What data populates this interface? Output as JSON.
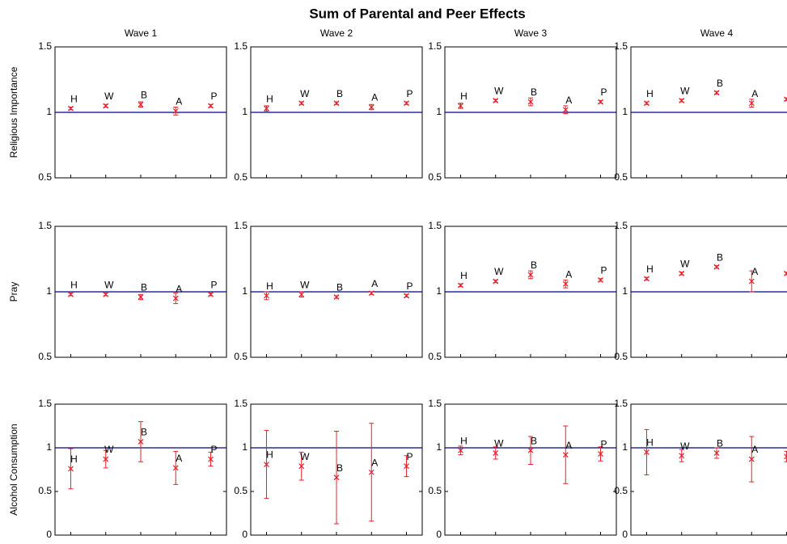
{
  "title": "Sum of Parental and Peer Effects",
  "chart_data": [
    {
      "type": "errorbar",
      "title": "Wave 1",
      "ylabel": "Religious Importance",
      "categories": [
        "H",
        "W",
        "B",
        "A",
        "P"
      ],
      "values": [
        1.03,
        1.05,
        1.06,
        1.01,
        1.05
      ],
      "errors": [
        0.01,
        0.01,
        0.02,
        0.03,
        0.01
      ],
      "color": "#e8202a",
      "reference_line": 1,
      "reference_color": "#00008b",
      "ylim": [
        0.5,
        1.5
      ],
      "yticks": [
        0.5,
        1,
        1.5
      ]
    },
    {
      "type": "errorbar",
      "title": "Wave 2",
      "categories": [
        "H",
        "W",
        "B",
        "A",
        "P"
      ],
      "values": [
        1.03,
        1.07,
        1.07,
        1.04,
        1.07
      ],
      "errors": [
        0.02,
        0.01,
        0.01,
        0.02,
        0.01
      ],
      "color": "#e8202a",
      "reference_line": 1,
      "reference_color": "#00008b",
      "ylim": [
        0.5,
        1.5
      ],
      "yticks": [
        0.5,
        1,
        1.5
      ]
    },
    {
      "type": "errorbar",
      "title": "Wave 3",
      "categories": [
        "H",
        "W",
        "B",
        "A",
        "P"
      ],
      "values": [
        1.05,
        1.09,
        1.08,
        1.02,
        1.08
      ],
      "errors": [
        0.02,
        0.01,
        0.03,
        0.03,
        0.01
      ],
      "color": "#e8202a",
      "reference_line": 1,
      "reference_color": "#00008b",
      "ylim": [
        0.5,
        1.5
      ],
      "yticks": [
        0.5,
        1,
        1.5
      ]
    },
    {
      "type": "errorbar",
      "title": "Wave 4",
      "categories": [
        "H",
        "W",
        "B",
        "A",
        "P"
      ],
      "values": [
        1.07,
        1.09,
        1.15,
        1.07,
        1.1
      ],
      "errors": [
        0.01,
        0.01,
        0.01,
        0.03,
        0.01
      ],
      "color": "#e8202a",
      "reference_line": 1,
      "reference_color": "#00008b",
      "ylim": [
        0.5,
        1.5
      ],
      "yticks": [
        0.5,
        1,
        1.5
      ]
    },
    {
      "type": "errorbar",
      "ylabel": "Pray",
      "categories": [
        "H",
        "W",
        "B",
        "A",
        "P"
      ],
      "values": [
        0.98,
        0.98,
        0.96,
        0.95,
        0.98
      ],
      "errors": [
        0.01,
        0.01,
        0.02,
        0.04,
        0.01
      ],
      "color": "#e8202a",
      "reference_line": 1,
      "reference_color": "#00008b",
      "ylim": [
        0.5,
        1.5
      ],
      "yticks": [
        0.5,
        1,
        1.5
      ]
    },
    {
      "type": "errorbar",
      "categories": [
        "H",
        "W",
        "B",
        "A",
        "P"
      ],
      "values": [
        0.97,
        0.98,
        0.96,
        0.99,
        0.97
      ],
      "errors": [
        0.03,
        0.02,
        0.01,
        0.01,
        0.01
      ],
      "color": "#e8202a",
      "reference_line": 1,
      "reference_color": "#00008b",
      "ylim": [
        0.5,
        1.5
      ],
      "yticks": [
        0.5,
        1,
        1.5
      ]
    },
    {
      "type": "errorbar",
      "categories": [
        "H",
        "W",
        "B",
        "A",
        "P"
      ],
      "values": [
        1.05,
        1.08,
        1.13,
        1.06,
        1.09
      ],
      "errors": [
        0.01,
        0.01,
        0.03,
        0.03,
        0.01
      ],
      "color": "#e8202a",
      "reference_line": 1,
      "reference_color": "#00008b",
      "ylim": [
        0.5,
        1.5
      ],
      "yticks": [
        0.5,
        1,
        1.5
      ]
    },
    {
      "type": "errorbar",
      "categories": [
        "H",
        "W",
        "B",
        "A",
        "P"
      ],
      "values": [
        1.1,
        1.14,
        1.19,
        1.08,
        1.14
      ],
      "errors": [
        0.01,
        0.01,
        0.01,
        0.08,
        0.01
      ],
      "color": "#e8202a",
      "reference_line": 1,
      "reference_color": "#00008b",
      "ylim": [
        0.5,
        1.5
      ],
      "yticks": [
        0.5,
        1,
        1.5
      ]
    },
    {
      "type": "errorbar",
      "ylabel": "Alcohol Consumption",
      "categories": [
        "H",
        "W",
        "B",
        "A",
        "P"
      ],
      "values": [
        0.76,
        0.87,
        1.07,
        0.77,
        0.87
      ],
      "errors": [
        0.23,
        0.1,
        0.23,
        0.19,
        0.08
      ],
      "color": "#e8202a",
      "reference_line": 1,
      "reference_color": "#00008b",
      "ylim": [
        0,
        1.5
      ],
      "yticks": [
        0,
        0.5,
        1,
        1.5
      ]
    },
    {
      "type": "errorbar",
      "categories": [
        "H",
        "W",
        "B",
        "A",
        "P"
      ],
      "values": [
        0.81,
        0.79,
        0.66,
        0.72,
        0.79
      ],
      "errors": [
        0.39,
        0.16,
        0.53,
        0.56,
        0.12
      ],
      "color": "#e8202a",
      "reference_line": 1,
      "reference_color": "#00008b",
      "ylim": [
        0,
        1.5
      ],
      "yticks": [
        0,
        0.5,
        1,
        1.5
      ]
    },
    {
      "type": "errorbar",
      "categories": [
        "H",
        "W",
        "B",
        "A",
        "P"
      ],
      "values": [
        0.97,
        0.94,
        0.97,
        0.92,
        0.93
      ],
      "errors": [
        0.05,
        0.07,
        0.16,
        0.33,
        0.08
      ],
      "color": "#e8202a",
      "reference_line": 1,
      "reference_color": "#00008b",
      "ylim": [
        0,
        1.5
      ],
      "yticks": [
        0,
        0.5,
        1,
        1.5
      ]
    },
    {
      "type": "errorbar",
      "categories": [
        "H",
        "W",
        "B",
        "A",
        "P"
      ],
      "values": [
        0.95,
        0.91,
        0.94,
        0.87,
        0.9
      ],
      "errors": [
        0.26,
        0.07,
        0.06,
        0.26,
        0.06
      ],
      "color": "#e8202a",
      "reference_line": 1,
      "reference_color": "#00008b",
      "ylim": [
        0,
        1.5
      ],
      "yticks": [
        0,
        0.5,
        1,
        1.5
      ]
    }
  ]
}
